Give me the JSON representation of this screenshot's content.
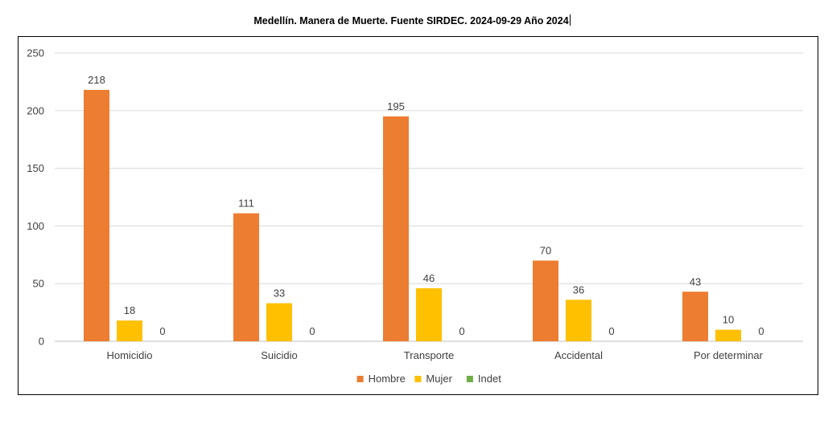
{
  "chart_data": {
    "type": "bar",
    "title": "Medellín. Manera de Muerte. Fuente SIRDEC. 2024-09-29 Año 2024",
    "categories": [
      "Homicidio",
      "Suicidio",
      "Transporte",
      "Accidental",
      "Por determinar"
    ],
    "series": [
      {
        "name": "Hombre",
        "color": "#ED7D31",
        "values": [
          218,
          111,
          195,
          70,
          43
        ]
      },
      {
        "name": "Mujer",
        "color": "#FFC000",
        "values": [
          18,
          33,
          46,
          36,
          10
        ]
      },
      {
        "name": "Indet",
        "color": "#70AD47",
        "values": [
          0,
          0,
          0,
          0,
          0
        ]
      }
    ],
    "ylim": [
      0,
      250
    ],
    "yticks": [
      0,
      50,
      100,
      150,
      200,
      250
    ],
    "grid": true,
    "legend_position": "bottom",
    "data_labels": true
  }
}
